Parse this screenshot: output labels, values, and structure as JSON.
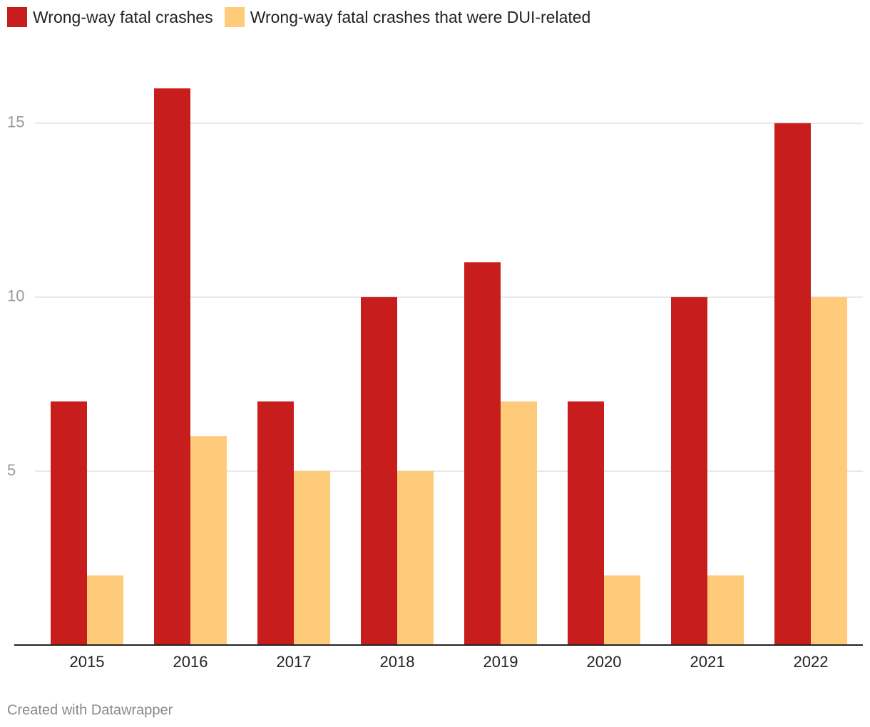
{
  "chart_data": {
    "type": "bar",
    "categories": [
      "2015",
      "2016",
      "2017",
      "2018",
      "2019",
      "2020",
      "2021",
      "2022"
    ],
    "series": [
      {
        "name": "Wrong-way fatal crashes",
        "color": "#c71e1d",
        "values": [
          7,
          16,
          7,
          10,
          11,
          7,
          10,
          15
        ]
      },
      {
        "name": "Wrong-way fatal crashes that were DUI-related",
        "color": "#fecb7a",
        "values": [
          2,
          6,
          5,
          5,
          7,
          2,
          2,
          10
        ]
      }
    ],
    "ylim": [
      0,
      16
    ],
    "yticks": [
      5,
      10,
      15
    ],
    "grid": true,
    "source": "Created with Datawrapper"
  }
}
